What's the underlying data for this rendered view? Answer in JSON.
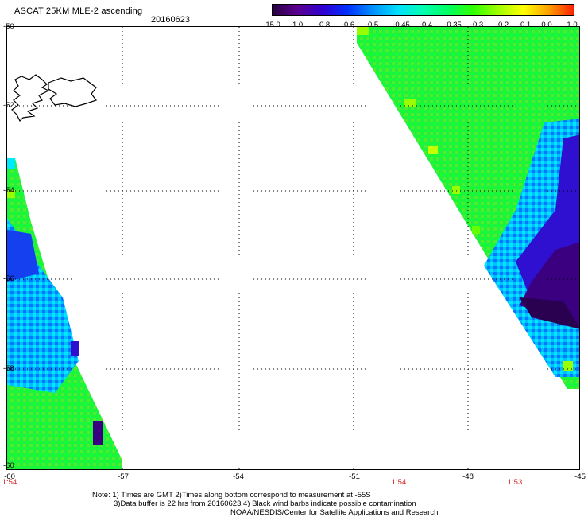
{
  "header": {
    "title": "ASCAT 25KM MLE-2 ascending",
    "date": "20160623"
  },
  "colorbar": {
    "labels": [
      "-15.0",
      "-1.0",
      "-0.8",
      "-0.6",
      "-0.5",
      "-0.45",
      "-0.4",
      "-0.35",
      "-0.3",
      "-0.2",
      "-0.1",
      "0.0",
      "1.0"
    ],
    "colors": [
      "#2a0040",
      "#5a0090",
      "#3000d0",
      "#0030ff",
      "#0090ff",
      "#00e0ff",
      "#00ffb0",
      "#00ff60",
      "#30ff00",
      "#a0ff00",
      "#ffff00",
      "#ffa000",
      "#ff2000"
    ]
  },
  "map": {
    "lat_labels": [
      "-50",
      "-52",
      "-54",
      "-56",
      "-58",
      "-60"
    ],
    "lon_labels": [
      "-60",
      "-57",
      "-54",
      "-51",
      "-48",
      "-45"
    ],
    "time_labels": [
      "1:54",
      "1:54",
      "1:53"
    ]
  },
  "notes": {
    "line1": "Note: 1) Times are GMT 2)Times along bottom correspond to measurement at -55S",
    "line2": "3)Data buffer is 22 hrs from 20160623 4) Black wind barbs indicate possible contamination",
    "line3": "NOAA/NESDIS/Center for Satellite Applications and Research"
  }
}
